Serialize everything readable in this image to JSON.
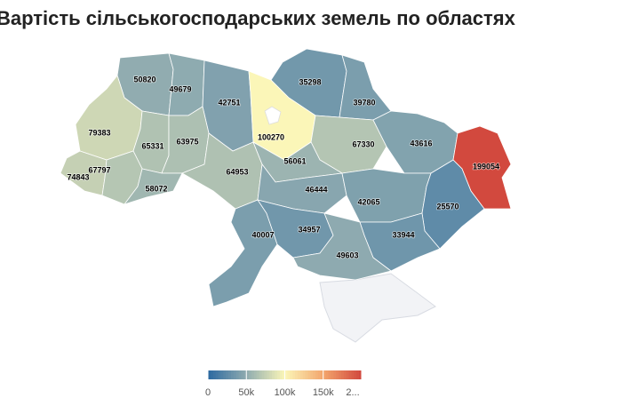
{
  "chart_data": {
    "type": "choropleth",
    "title": "Вартість сільськогосподарських земель по областях",
    "values": [
      50820,
      49679,
      42751,
      35298,
      39780,
      100270,
      79383,
      65331,
      63975,
      67330,
      43616,
      74843,
      67797,
      58072,
      64953,
      56061,
      46444,
      42065,
      199054,
      25570,
      40007,
      34957,
      33944,
      49603
    ],
    "colorscale": [
      "#2c69a0",
      "#8fabb0",
      "#fbf6b8",
      "#f3a66d",
      "#d1473d"
    ],
    "clim": [
      0,
      200000
    ],
    "legend_ticks": [
      0,
      {
        "value": 50000,
        "label": "50k"
      },
      {
        "value": 100000,
        "label": "100k"
      },
      {
        "value": 150000,
        "label": "150k"
      },
      {
        "value": 200000,
        "label": "2..."
      }
    ]
  }
}
